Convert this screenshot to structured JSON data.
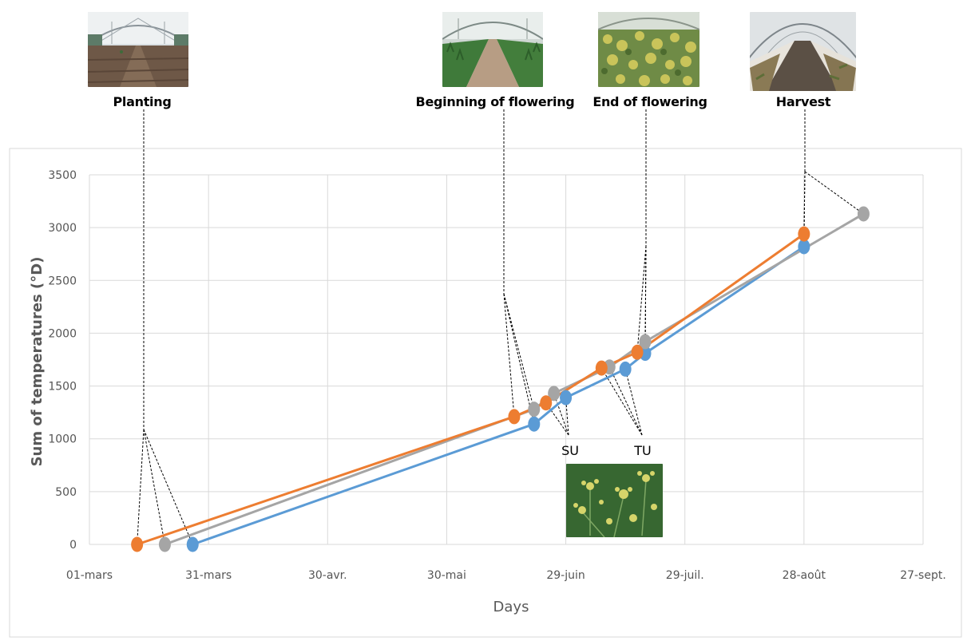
{
  "stages": [
    {
      "key": "planting",
      "label": "Planting",
      "photo_icon": "greenhouse-bare-soil-photo"
    },
    {
      "key": "flowering_start",
      "label": "Beginning of flowering",
      "photo_icon": "greenhouse-young-plants-photo"
    },
    {
      "key": "flowering_end",
      "label": "End of flowering",
      "photo_icon": "greenhouse-flowering-plants-photo"
    },
    {
      "key": "harvest",
      "label": "Harvest",
      "photo_icon": "greenhouse-harvest-photo"
    }
  ],
  "inset_photo_icon": "fennel-umbels-closeup-photo",
  "group_labels": {
    "su": "SU",
    "tu": "TU"
  },
  "colors": {
    "blue": "#5b9bd5",
    "orange": "#ed7d31",
    "gray": "#a5a5a5",
    "grid": "#d9d9d9",
    "frame": "#d9d9d9"
  },
  "chart_data": {
    "type": "line",
    "xlabel": "Days",
    "ylabel": "Sum of temperatures (°D)",
    "x_ticks": [
      "01-mars",
      "31-mars",
      "30-avr.",
      "30-mai",
      "29-juin",
      "29-juil.",
      "28-août",
      "27-sept."
    ],
    "y_ticks": [
      0,
      500,
      1000,
      1500,
      2000,
      2500,
      3000,
      3500
    ],
    "ylim": [
      0,
      3500
    ],
    "grid": true,
    "series": [
      {
        "color": "blue",
        "points": [
          {
            "x": "27-mars",
            "y": 0
          },
          {
            "x": "21-juin",
            "y": 1140
          },
          {
            "x": "29-juin",
            "y": 1390
          },
          {
            "x": "14-juil.",
            "y": 1660
          },
          {
            "x": "19-juil.",
            "y": 1810
          },
          {
            "x": "28-août",
            "y": 2820
          }
        ]
      },
      {
        "color": "orange",
        "points": [
          {
            "x": "13-mars",
            "y": 0
          },
          {
            "x": "16-juin",
            "y": 1210
          },
          {
            "x": "24-juin",
            "y": 1340
          },
          {
            "x": "08-juil.",
            "y": 1670
          },
          {
            "x": "17-juil.",
            "y": 1820
          },
          {
            "x": "28-août",
            "y": 2940
          }
        ]
      },
      {
        "color": "gray",
        "points": [
          {
            "x": "20-mars",
            "y": 0
          },
          {
            "x": "21-juin",
            "y": 1280
          },
          {
            "x": "26-juin",
            "y": 1430
          },
          {
            "x": "10-juil.",
            "y": 1680
          },
          {
            "x": "19-juil.",
            "y": 1920
          },
          {
            "x": "12-sept.",
            "y": 3130
          }
        ]
      }
    ]
  }
}
